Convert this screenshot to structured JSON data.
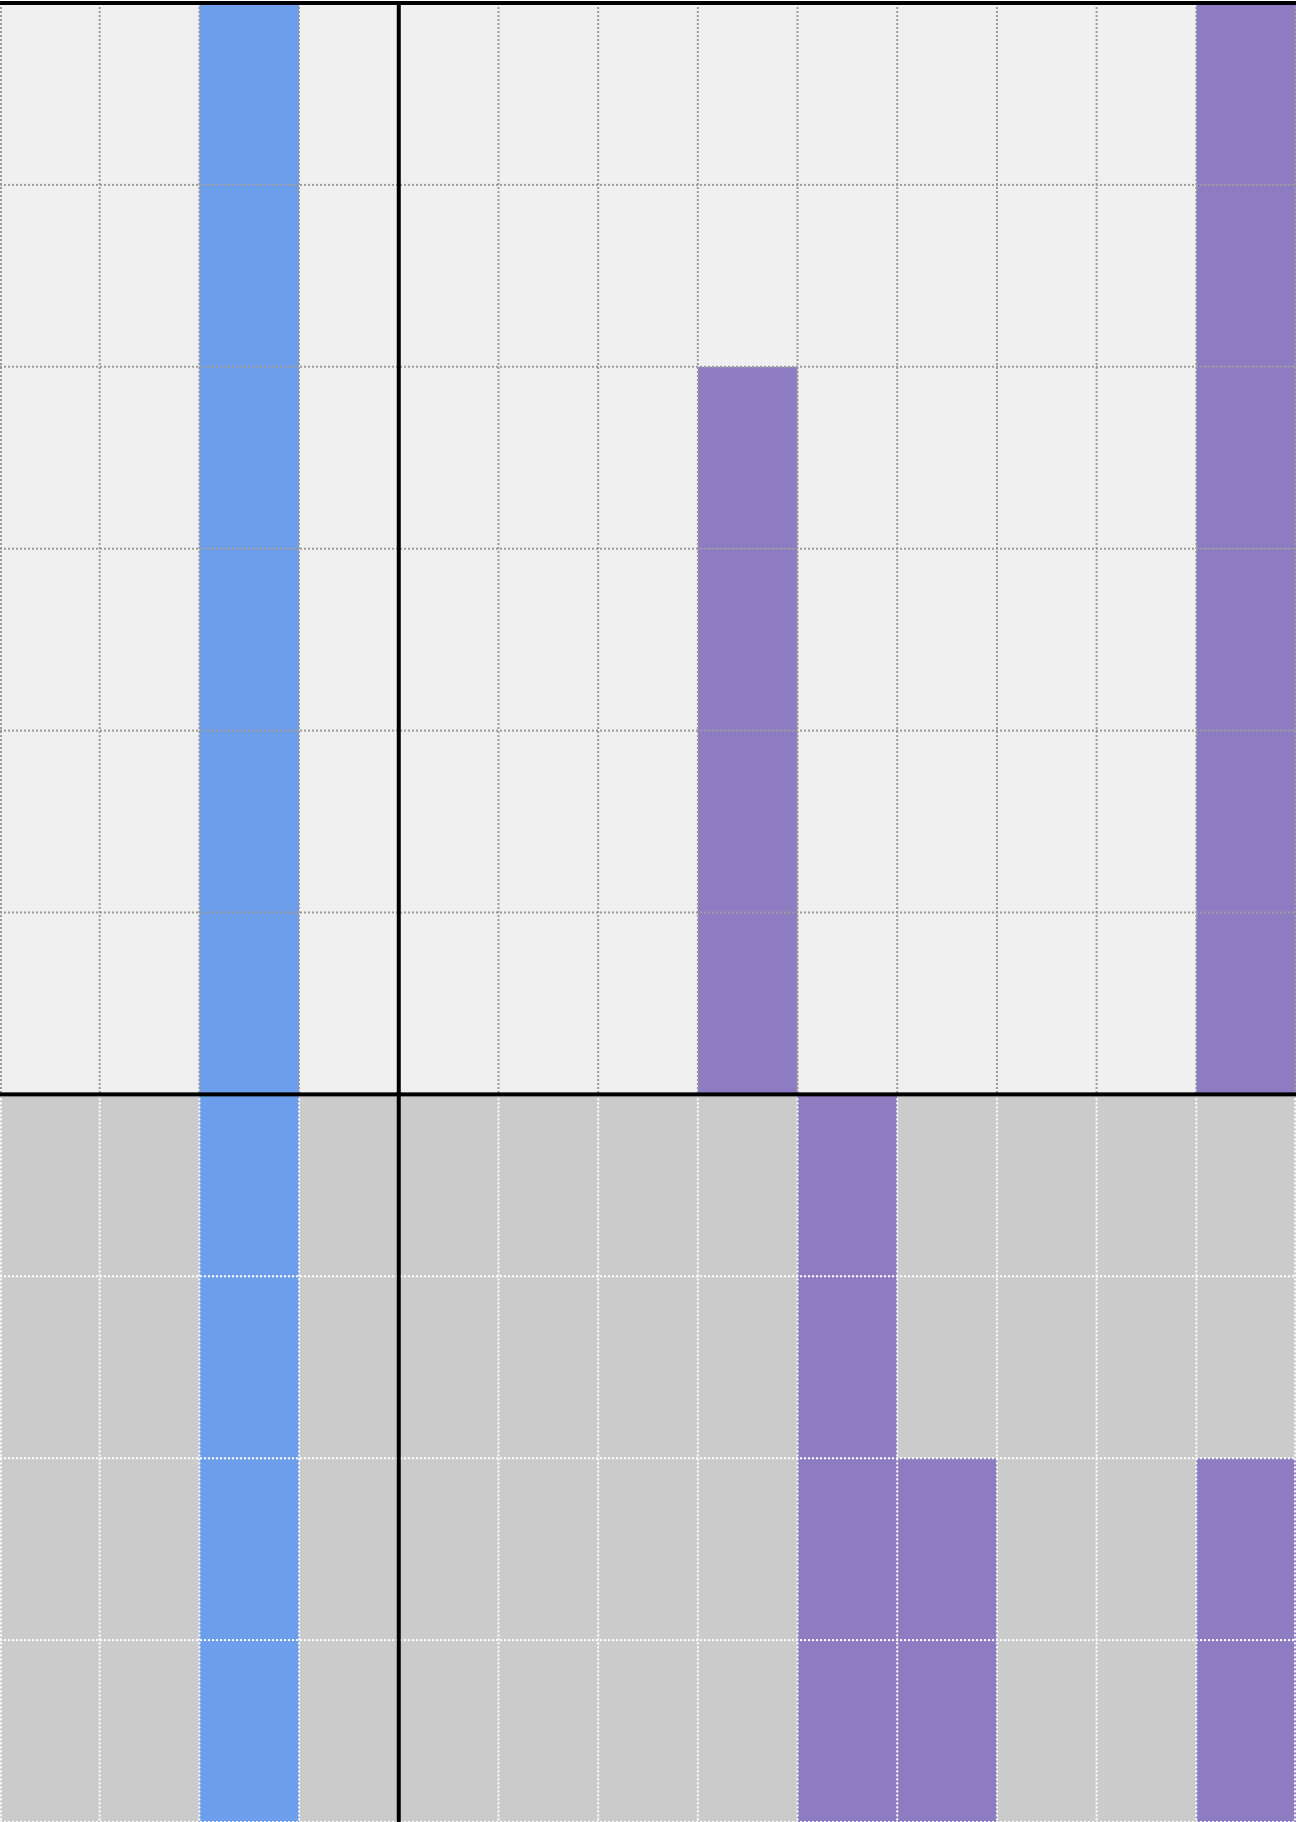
{
  "grid": {
    "rows": [
      [
        "#f0f0f0",
        "#f0f0f0",
        "#6d9eeb",
        "#f0f0f0",
        "#f0f0f0",
        "#f0f0f0",
        "#f0f0f0",
        "#f0f0f0",
        "#f0f0f0",
        "#f0f0f0",
        "#f0f0f0",
        "#f0f0f0",
        "#8e7cc3"
      ],
      [
        "#f0f0f0",
        "#f0f0f0",
        "#6d9eeb",
        "#f0f0f0",
        "#f0f0f0",
        "#f0f0f0",
        "#f0f0f0",
        "#f0f0f0",
        "#f0f0f0",
        "#f0f0f0",
        "#f0f0f0",
        "#f0f0f0",
        "#8e7cc3"
      ],
      [
        "#f0f0f0",
        "#f0f0f0",
        "#6d9eeb",
        "#f0f0f0",
        "#f0f0f0",
        "#f0f0f0",
        "#f0f0f0",
        "#8e7cc3",
        "#f0f0f0",
        "#f0f0f0",
        "#f0f0f0",
        "#f0f0f0",
        "#8e7cc3"
      ],
      [
        "#f0f0f0",
        "#f0f0f0",
        "#6d9eeb",
        "#f0f0f0",
        "#f0f0f0",
        "#f0f0f0",
        "#f0f0f0",
        "#8e7cc3",
        "#f0f0f0",
        "#f0f0f0",
        "#f0f0f0",
        "#f0f0f0",
        "#8e7cc3"
      ],
      [
        "#f0f0f0",
        "#f0f0f0",
        "#6d9eeb",
        "#f0f0f0",
        "#f0f0f0",
        "#f0f0f0",
        "#f0f0f0",
        "#8e7cc3",
        "#f0f0f0",
        "#f0f0f0",
        "#f0f0f0",
        "#f0f0f0",
        "#8e7cc3"
      ],
      [
        "#f0f0f0",
        "#f0f0f0",
        "#6d9eeb",
        "#f0f0f0",
        "#f0f0f0",
        "#f0f0f0",
        "#f0f0f0",
        "#8e7cc3",
        "#f0f0f0",
        "#f0f0f0",
        "#f0f0f0",
        "#f0f0f0",
        "#8e7cc3"
      ],
      [
        "#cbcbcb",
        "#cbcbcb",
        "#6d9eeb",
        "#cbcbcb",
        "#cbcbcb",
        "#cbcbcb",
        "#cbcbcb",
        "#cbcbcb",
        "#8e7cc3",
        "#cbcbcb",
        "#cbcbcb",
        "#cbcbcb",
        "#cbcbcb"
      ],
      [
        "#cbcbcb",
        "#cbcbcb",
        "#6d9eeb",
        "#cbcbcb",
        "#cbcbcb",
        "#cbcbcb",
        "#cbcbcb",
        "#cbcbcb",
        "#8e7cc3",
        "#cbcbcb",
        "#cbcbcb",
        "#cbcbcb",
        "#cbcbcb"
      ],
      [
        "#cbcbcb",
        "#cbcbcb",
        "#6d9eeb",
        "#cbcbcb",
        "#cbcbcb",
        "#cbcbcb",
        "#cbcbcb",
        "#cbcbcb",
        "#8e7cc3",
        "#8e7cc3",
        "#cbcbcb",
        "#cbcbcb",
        "#8e7cc3"
      ],
      [
        "#cbcbcb",
        "#cbcbcb",
        "#6d9eeb",
        "#cbcbcb",
        "#cbcbcb",
        "#cbcbcb",
        "#cbcbcb",
        "#cbcbcb",
        "#8e7cc3",
        "#8e7cc3",
        "#cbcbcb",
        "#cbcbcb",
        "#8e7cc3"
      ]
    ]
  }
}
